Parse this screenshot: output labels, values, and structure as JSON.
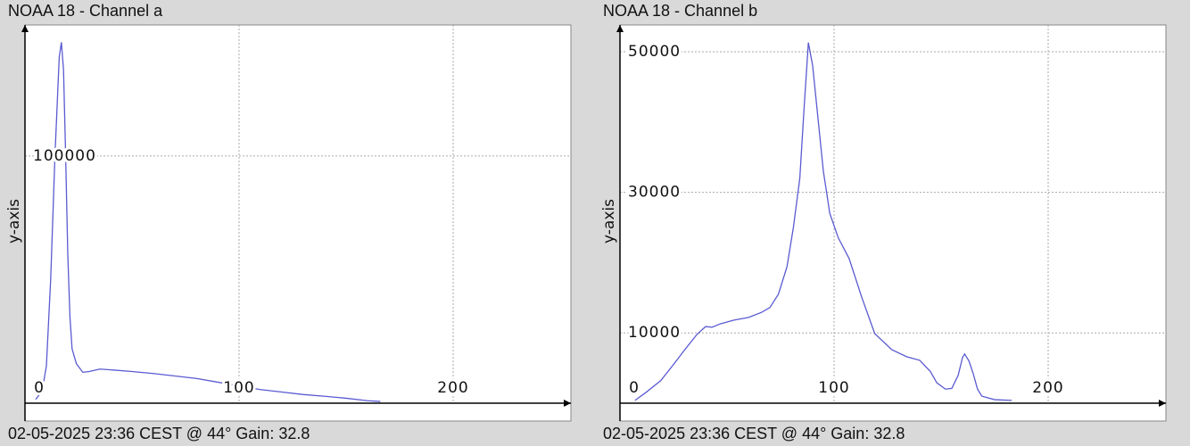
{
  "chart_data": [
    {
      "type": "line",
      "title": "NOAA 18 - Channel a",
      "caption": "02-05-2025 23:36 CEST @ 44° Gain: 32.8",
      "y_label": "y-axis",
      "color": "#5a5ad2",
      "grid": true,
      "xlim": [
        0,
        255
      ],
      "xticks": [
        0,
        100,
        200
      ],
      "ylim": [
        0,
        153000
      ],
      "yticks": [
        100000
      ],
      "x": [
        5,
        8,
        10,
        12,
        14,
        16,
        17,
        18,
        19,
        20,
        21,
        22,
        24,
        27,
        30,
        35,
        40,
        50,
        60,
        70,
        80,
        90,
        100,
        110,
        120,
        130,
        140,
        150,
        160,
        166
      ],
      "values": [
        1500,
        5000,
        15000,
        50000,
        100000,
        140000,
        146000,
        135000,
        100000,
        60000,
        35000,
        22000,
        16000,
        12500,
        12800,
        13800,
        13500,
        12800,
        12000,
        11000,
        10000,
        8500,
        7000,
        5500,
        4500,
        3500,
        2800,
        2000,
        1000,
        700
      ]
    },
    {
      "type": "line",
      "title": "NOAA 18 - Channel b",
      "caption": "02-05-2025 23:36 CEST @ 44° Gain: 32.8",
      "y_label": "y-axis",
      "color": "#5a5ad2",
      "grid": true,
      "xlim": [
        0,
        255
      ],
      "xticks": [
        0,
        100,
        200
      ],
      "ylim": [
        0,
        53800
      ],
      "yticks": [
        10000,
        30000,
        50000
      ],
      "x": [
        7,
        12,
        19,
        25,
        30,
        36,
        40,
        43,
        47,
        53,
        60,
        66,
        70,
        74,
        78,
        81,
        84,
        86,
        88,
        90,
        92,
        95,
        98,
        102,
        107,
        113,
        119,
        127,
        134,
        140,
        145,
        148,
        152,
        155,
        158,
        160,
        161,
        163,
        165,
        167,
        169,
        175,
        183
      ],
      "values": [
        400,
        1500,
        3200,
        5500,
        7500,
        9800,
        10900,
        10800,
        11300,
        11800,
        12200,
        12900,
        13600,
        15500,
        19400,
        25000,
        32000,
        42000,
        51300,
        48000,
        42000,
        33000,
        27000,
        23500,
        20600,
        15000,
        9900,
        7600,
        6600,
        6100,
        4500,
        2900,
        2000,
        2100,
        4000,
        6500,
        7000,
        6000,
        4200,
        2000,
        1000,
        500,
        400
      ]
    }
  ]
}
